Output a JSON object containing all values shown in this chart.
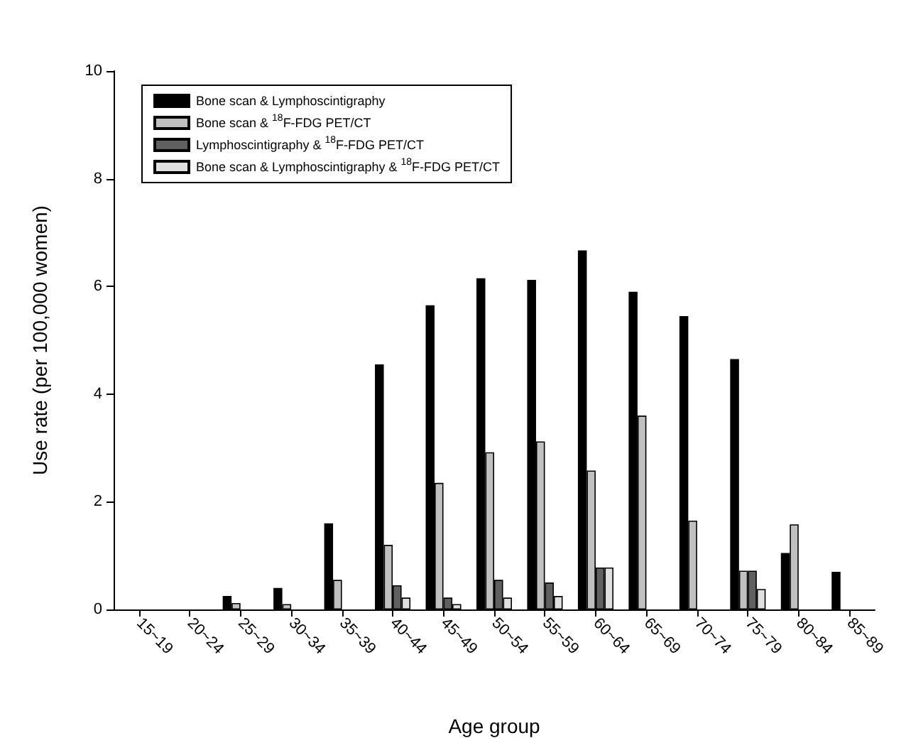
{
  "chart_data": {
    "type": "bar",
    "xlabel": "Age group",
    "ylabel": "Use rate (per 100,000 women)",
    "categories": [
      "15~19",
      "20~24",
      "25~29",
      "30~34",
      "35~39",
      "40~44",
      "45~49",
      "50~54",
      "55~59",
      "60~64",
      "65~69",
      "70~74",
      "75~79",
      "80~84",
      "85~89"
    ],
    "series": [
      {
        "name": "Bone scan & Lymphoscintigraphy",
        "color": "#000000",
        "values": [
          null,
          null,
          0.25,
          0.4,
          1.6,
          4.55,
          5.65,
          6.15,
          6.12,
          6.67,
          5.9,
          5.45,
          4.65,
          1.05,
          0.7
        ]
      },
      {
        "name": "Bone scan & $^{18}$F-FDG PET/CT",
        "color": "#c0c0c0",
        "values": [
          null,
          null,
          0.12,
          0.1,
          0.55,
          1.2,
          2.35,
          2.92,
          3.12,
          2.58,
          3.6,
          1.65,
          0.72,
          1.58,
          null
        ]
      },
      {
        "name": "Lymphoscintigraphy & $^{18}$F-FDG PET/CT",
        "color": "#606060",
        "values": [
          null,
          null,
          null,
          null,
          null,
          0.45,
          0.22,
          0.55,
          0.5,
          0.78,
          null,
          null,
          0.72,
          null,
          null
        ]
      },
      {
        "name": "Bone scan & Lymphoscintigraphy & $^{18}$F-FDG PET/CT",
        "color": "#e0e0e0",
        "values": [
          null,
          null,
          null,
          null,
          null,
          0.22,
          0.1,
          0.22,
          0.25,
          0.78,
          null,
          null,
          0.38,
          null,
          null
        ]
      }
    ],
    "ylim": [
      0,
      10
    ],
    "yticks": [
      0,
      2,
      4,
      6,
      8,
      10
    ],
    "grid": false,
    "legend": "top left"
  }
}
